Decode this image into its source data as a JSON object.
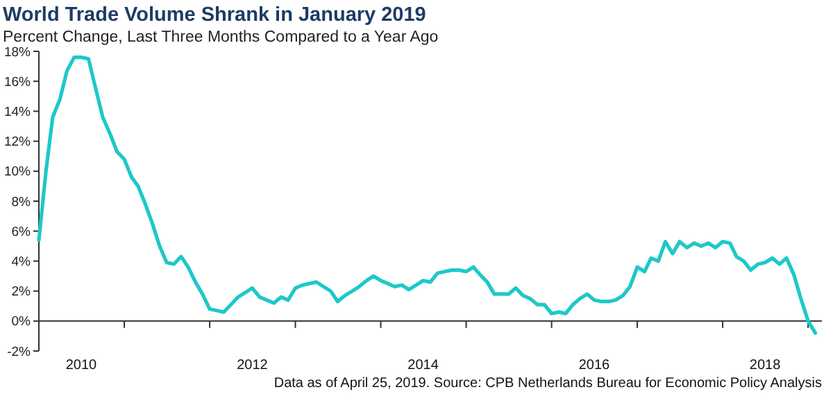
{
  "chart_data": {
    "type": "line",
    "title": "World Trade Volume Shrank in January 2019",
    "subtitle": "Percent Change, Last Three Months Compared to a Year Ago",
    "annotations": [
      "Data as of April 25, 2019. Source: CPB Netherlands Bureau for Economic Policy Analysis"
    ],
    "x": [
      "2010-01",
      "2010-02",
      "2010-03",
      "2010-04",
      "2010-05",
      "2010-06",
      "2010-07",
      "2010-08",
      "2010-09",
      "2010-10",
      "2010-11",
      "2010-12",
      "2011-01",
      "2011-02",
      "2011-03",
      "2011-04",
      "2011-05",
      "2011-06",
      "2011-07",
      "2011-08",
      "2011-09",
      "2011-10",
      "2011-11",
      "2011-12",
      "2012-01",
      "2012-02",
      "2012-03",
      "2012-04",
      "2012-05",
      "2012-06",
      "2012-07",
      "2012-08",
      "2012-09",
      "2012-10",
      "2012-11",
      "2012-12",
      "2013-01",
      "2013-02",
      "2013-03",
      "2013-04",
      "2013-05",
      "2013-06",
      "2013-07",
      "2013-08",
      "2013-09",
      "2013-10",
      "2013-11",
      "2013-12",
      "2014-01",
      "2014-02",
      "2014-03",
      "2014-04",
      "2014-05",
      "2014-06",
      "2014-07",
      "2014-08",
      "2014-09",
      "2014-10",
      "2014-11",
      "2014-12",
      "2015-01",
      "2015-02",
      "2015-03",
      "2015-04",
      "2015-05",
      "2015-06",
      "2015-07",
      "2015-08",
      "2015-09",
      "2015-10",
      "2015-11",
      "2015-12",
      "2016-01",
      "2016-02",
      "2016-03",
      "2016-04",
      "2016-05",
      "2016-06",
      "2016-07",
      "2016-08",
      "2016-09",
      "2016-10",
      "2016-11",
      "2016-12",
      "2017-01",
      "2017-02",
      "2017-03",
      "2017-04",
      "2017-05",
      "2017-06",
      "2017-07",
      "2017-08",
      "2017-09",
      "2017-10",
      "2017-11",
      "2017-12",
      "2018-01",
      "2018-02",
      "2018-03",
      "2018-04",
      "2018-05",
      "2018-06",
      "2018-07",
      "2018-08",
      "2018-09",
      "2018-10",
      "2018-11",
      "2018-12",
      "2019-01",
      "2019-02"
    ],
    "series": [
      {
        "color": "#1ec8c8",
        "values": [
          5.4,
          10.1,
          13.6,
          14.8,
          16.7,
          17.6,
          17.6,
          17.5,
          15.5,
          13.6,
          12.5,
          11.3,
          10.8,
          9.6,
          9.0,
          7.8,
          6.5,
          5.0,
          3.9,
          3.8,
          4.3,
          3.6,
          2.6,
          1.8,
          0.8,
          0.7,
          0.6,
          1.1,
          1.6,
          1.9,
          2.2,
          1.6,
          1.4,
          1.2,
          1.6,
          1.4,
          2.2,
          2.4,
          2.5,
          2.6,
          2.3,
          2.0,
          1.3,
          1.7,
          2.0,
          2.3,
          2.7,
          3.0,
          2.7,
          2.5,
          2.3,
          2.4,
          2.1,
          2.4,
          2.7,
          2.6,
          3.2,
          3.3,
          3.4,
          3.4,
          3.3,
          3.6,
          3.1,
          2.6,
          1.8,
          1.8,
          1.8,
          2.2,
          1.7,
          1.5,
          1.1,
          1.1,
          0.5,
          0.6,
          0.5,
          1.1,
          1.5,
          1.8,
          1.4,
          1.3,
          1.3,
          1.4,
          1.7,
          2.3,
          3.6,
          3.3,
          4.2,
          4.0,
          5.3,
          4.5,
          5.3,
          4.9,
          5.2,
          5.0,
          5.2,
          4.9,
          5.3,
          5.2,
          4.3,
          4.0,
          3.4,
          3.8,
          3.9,
          4.2,
          3.8,
          4.2,
          3.1,
          1.5,
          0.0,
          -0.8
        ]
      }
    ],
    "xlim": [
      "2010-01-01",
      "2019-03-01"
    ],
    "xticks": [
      {
        "value": "2010-07-01",
        "label": "2010"
      },
      {
        "value": "2011-01-01",
        "label": null
      },
      {
        "value": "2012-01-01",
        "label": null
      },
      {
        "value": "2012-07-01",
        "label": "2012"
      },
      {
        "value": "2013-01-01",
        "label": null
      },
      {
        "value": "2014-01-01",
        "label": null
      },
      {
        "value": "2014-07-01",
        "label": "2014"
      },
      {
        "value": "2015-01-01",
        "label": null
      },
      {
        "value": "2016-01-01",
        "label": null
      },
      {
        "value": "2016-07-01",
        "label": "2016"
      },
      {
        "value": "2017-01-01",
        "label": null
      },
      {
        "value": "2018-01-01",
        "label": null
      },
      {
        "value": "2018-07-01",
        "label": "2018"
      },
      {
        "value": "2019-01-01",
        "label": null
      }
    ],
    "ylim": [
      -2,
      18
    ],
    "yticks": [
      {
        "value": -2,
        "label": "-2%"
      },
      {
        "value": 0,
        "label": "0%"
      },
      {
        "value": 2,
        "label": "2%"
      },
      {
        "value": 4,
        "label": "4%"
      },
      {
        "value": 6,
        "label": "6%"
      },
      {
        "value": 8,
        "label": "8%"
      },
      {
        "value": 10,
        "label": "10%"
      },
      {
        "value": 12,
        "label": "12%"
      },
      {
        "value": 14,
        "label": "14%"
      },
      {
        "value": 16,
        "label": "16%"
      },
      {
        "value": 18,
        "label": "18%"
      }
    ],
    "marker": "none",
    "line_style": "solid"
  }
}
